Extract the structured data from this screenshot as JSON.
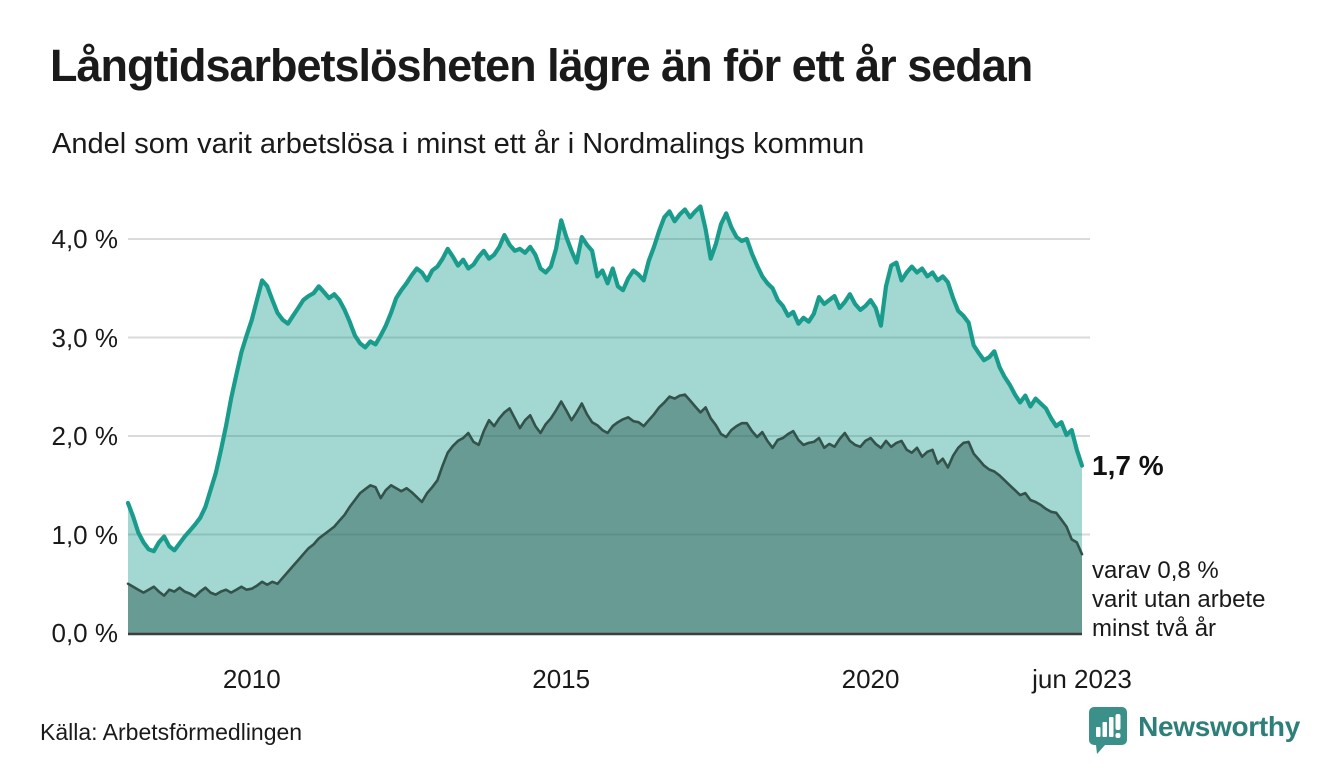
{
  "header": {
    "title": "Långtidsarbetslösheten lägre än för ett år sedan",
    "subtitle": "Andel som varit arbetslösa i minst ett år i Nordmalings kommun"
  },
  "chart_data": {
    "type": "area",
    "title": "Långtidsarbetslösheten lägre än för ett år sedan",
    "subtitle": "Andel som varit arbetslösa i minst ett år i Nordmalings kommun",
    "unit": "%",
    "x_start": "2008-01",
    "x_end": "2023-06",
    "x_frequency": "monthly",
    "ylim": [
      0,
      4.45
    ],
    "grid": true,
    "y_ticks": [
      {
        "label": "4,0 %",
        "value": 4
      },
      {
        "label": "3,0 %",
        "value": 3
      },
      {
        "label": "2,0 %",
        "value": 2
      },
      {
        "label": "1,0 %",
        "value": 1
      },
      {
        "label": "0,0 %",
        "value": 0
      }
    ],
    "x_ticks": [
      {
        "label": "2010",
        "month_index": 24
      },
      {
        "label": "2015",
        "month_index": 84
      },
      {
        "label": "2020",
        "month_index": 144
      },
      {
        "label": "jun 2023",
        "month_index": 185
      }
    ],
    "series": [
      {
        "name": "Andel arbetslösa minst ett år",
        "end_label": "1,7 %",
        "line_color": "#1a9c8d",
        "fill_color": "rgba(26,156,141,0.40)",
        "values": [
          1.32,
          1.18,
          1.02,
          0.92,
          0.85,
          0.83,
          0.92,
          0.98,
          0.88,
          0.84,
          0.91,
          0.98,
          1.04,
          1.1,
          1.17,
          1.28,
          1.45,
          1.62,
          1.85,
          2.1,
          2.38,
          2.62,
          2.85,
          3.02,
          3.18,
          3.38,
          3.58,
          3.52,
          3.38,
          3.25,
          3.18,
          3.14,
          3.22,
          3.3,
          3.38,
          3.42,
          3.45,
          3.52,
          3.46,
          3.4,
          3.44,
          3.38,
          3.28,
          3.16,
          3.02,
          2.94,
          2.9,
          2.96,
          2.93,
          3.02,
          3.12,
          3.25,
          3.4,
          3.48,
          3.55,
          3.63,
          3.7,
          3.66,
          3.58,
          3.68,
          3.72,
          3.8,
          3.9,
          3.82,
          3.73,
          3.79,
          3.7,
          3.74,
          3.82,
          3.88,
          3.8,
          3.84,
          3.92,
          4.04,
          3.94,
          3.88,
          3.9,
          3.86,
          3.92,
          3.84,
          3.7,
          3.66,
          3.72,
          3.9,
          4.19,
          4.02,
          3.88,
          3.76,
          4.02,
          3.94,
          3.88,
          3.62,
          3.68,
          3.55,
          3.7,
          3.52,
          3.48,
          3.6,
          3.68,
          3.64,
          3.58,
          3.78,
          3.92,
          4.08,
          4.22,
          4.28,
          4.18,
          4.25,
          4.3,
          4.22,
          4.28,
          4.33,
          4.1,
          3.8,
          3.95,
          4.15,
          4.26,
          4.12,
          4.02,
          3.98,
          4.0,
          3.85,
          3.73,
          3.62,
          3.55,
          3.5,
          3.38,
          3.32,
          3.22,
          3.26,
          3.14,
          3.2,
          3.16,
          3.24,
          3.41,
          3.34,
          3.38,
          3.42,
          3.3,
          3.36,
          3.44,
          3.34,
          3.28,
          3.32,
          3.38,
          3.3,
          3.12,
          3.52,
          3.73,
          3.76,
          3.58,
          3.66,
          3.72,
          3.66,
          3.7,
          3.62,
          3.66,
          3.58,
          3.62,
          3.56,
          3.4,
          3.27,
          3.22,
          3.15,
          2.92,
          2.84,
          2.77,
          2.8,
          2.86,
          2.7,
          2.6,
          2.52,
          2.42,
          2.34,
          2.41,
          2.3,
          2.38,
          2.33,
          2.28,
          2.18,
          2.1,
          2.14,
          2.01,
          2.06,
          1.86,
          1.7
        ]
      },
      {
        "name": "Andel utan arbete minst två år",
        "end_label_lines": [
          "varav 0,8 %",
          "varit utan arbete",
          "minst två år"
        ],
        "line_color": "#33524c",
        "fill_color": "rgba(44,95,86,0.50)",
        "values": [
          0.5,
          0.47,
          0.44,
          0.41,
          0.44,
          0.47,
          0.42,
          0.38,
          0.44,
          0.42,
          0.46,
          0.42,
          0.4,
          0.37,
          0.42,
          0.46,
          0.41,
          0.39,
          0.42,
          0.44,
          0.41,
          0.44,
          0.47,
          0.44,
          0.45,
          0.48,
          0.52,
          0.49,
          0.52,
          0.5,
          0.56,
          0.62,
          0.68,
          0.74,
          0.8,
          0.86,
          0.9,
          0.96,
          1.0,
          1.04,
          1.08,
          1.14,
          1.2,
          1.28,
          1.35,
          1.42,
          1.46,
          1.5,
          1.48,
          1.37,
          1.45,
          1.5,
          1.47,
          1.44,
          1.47,
          1.43,
          1.38,
          1.33,
          1.42,
          1.48,
          1.55,
          1.7,
          1.83,
          1.9,
          1.95,
          1.98,
          2.03,
          1.94,
          1.91,
          2.05,
          2.16,
          2.1,
          2.18,
          2.24,
          2.28,
          2.18,
          2.08,
          2.16,
          2.21,
          2.1,
          2.03,
          2.12,
          2.18,
          2.26,
          2.35,
          2.26,
          2.16,
          2.24,
          2.33,
          2.22,
          2.14,
          2.11,
          2.06,
          2.03,
          2.1,
          2.14,
          2.17,
          2.19,
          2.15,
          2.14,
          2.1,
          2.16,
          2.22,
          2.29,
          2.34,
          2.4,
          2.38,
          2.41,
          2.42,
          2.36,
          2.3,
          2.24,
          2.29,
          2.18,
          2.11,
          2.02,
          1.99,
          2.06,
          2.1,
          2.13,
          2.13,
          2.05,
          1.99,
          2.04,
          1.95,
          1.88,
          1.96,
          1.98,
          2.02,
          2.05,
          1.96,
          1.91,
          1.93,
          1.94,
          1.98,
          1.88,
          1.92,
          1.89,
          1.97,
          2.03,
          1.95,
          1.91,
          1.89,
          1.95,
          1.98,
          1.92,
          1.88,
          1.95,
          1.89,
          1.93,
          1.95,
          1.86,
          1.83,
          1.88,
          1.79,
          1.84,
          1.86,
          1.72,
          1.77,
          1.68,
          1.8,
          1.88,
          1.93,
          1.94,
          1.82,
          1.76,
          1.7,
          1.66,
          1.64,
          1.6,
          1.55,
          1.5,
          1.45,
          1.4,
          1.42,
          1.35,
          1.33,
          1.3,
          1.26,
          1.23,
          1.22,
          1.15,
          1.08,
          0.95,
          0.92,
          0.8
        ]
      }
    ],
    "colors": {
      "grid": "#d9dadb",
      "axis": "#3d3d3d",
      "teal_line": "#1a9c8d",
      "dark_line": "#33524c"
    },
    "legend_position": "none"
  },
  "footer": {
    "source": "Källa: Arbetsförmedlingen",
    "logo_text": "Newsworthy",
    "logo_color": "#2e7f79",
    "logo_icon": "bar-chart-speech-bubble",
    "logo_icon_color": "#3b918a"
  }
}
